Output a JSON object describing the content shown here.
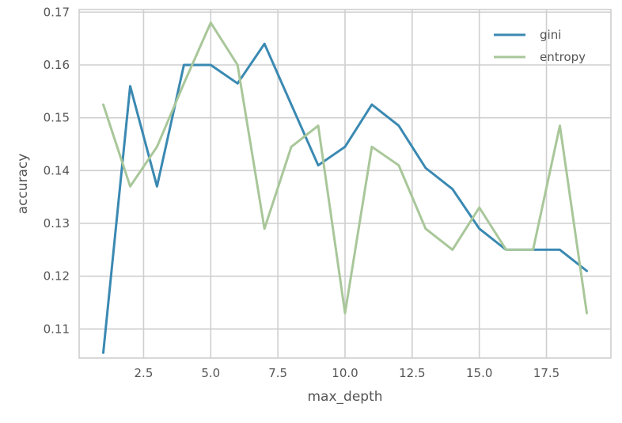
{
  "chart_data": {
    "type": "line",
    "title": "",
    "xlabel": "max_depth",
    "ylabel": "accuracy",
    "xlim": [
      0.1,
      19.9
    ],
    "ylim": [
      0.1045,
      0.1705
    ],
    "xticks": [
      2.5,
      5.0,
      7.5,
      10.0,
      12.5,
      15.0,
      17.5
    ],
    "xtick_labels": [
      "2.5",
      "5.0",
      "7.5",
      "10.0",
      "12.5",
      "15.0",
      "17.5"
    ],
    "yticks": [
      0.11,
      0.12,
      0.13,
      0.14,
      0.15,
      0.16,
      0.17
    ],
    "ytick_labels": [
      "0.11",
      "0.12",
      "0.13",
      "0.14",
      "0.15",
      "0.16",
      "0.17"
    ],
    "grid": true,
    "legend_position": "top-right",
    "x": [
      1,
      2,
      3,
      4,
      5,
      6,
      7,
      8,
      9,
      10,
      11,
      12,
      13,
      14,
      15,
      16,
      17,
      18,
      19
    ],
    "series": [
      {
        "name": "gini",
        "color": "#3a89b2",
        "values": [
          0.1055,
          0.156,
          0.137,
          0.16,
          0.16,
          0.1565,
          0.164,
          0.1525,
          0.141,
          0.1445,
          0.1525,
          0.1485,
          0.1405,
          0.1365,
          0.129,
          0.125,
          0.125,
          0.125,
          0.121
        ]
      },
      {
        "name": "entropy",
        "color": "#a9c79a",
        "values": [
          0.1525,
          0.137,
          0.1445,
          0.1565,
          0.168,
          0.16,
          0.129,
          0.1445,
          0.1485,
          0.113,
          0.1445,
          0.141,
          0.129,
          0.125,
          0.133,
          0.125,
          0.125,
          0.1485,
          0.113
        ]
      }
    ]
  }
}
